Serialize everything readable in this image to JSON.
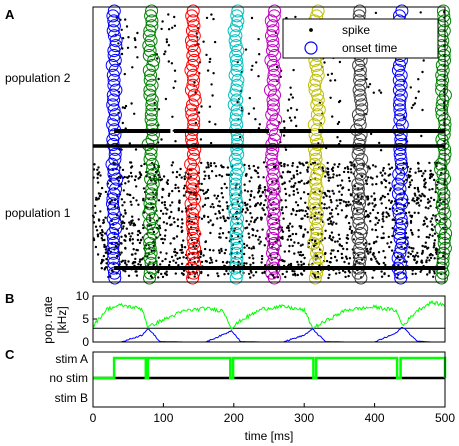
{
  "panels": {
    "a": {
      "letter": "A",
      "population_labels": [
        "population 2",
        "population 1"
      ]
    },
    "b": {
      "letter": "B",
      "ylabel_line1": "pop. rate",
      "ylabel_line2": "[kHz]"
    },
    "c": {
      "letter": "C",
      "state_labels": [
        "stim A",
        "no stim",
        "stim B"
      ]
    }
  },
  "xaxis": {
    "label": "time [ms]",
    "ticks": [
      "0",
      "100",
      "200",
      "300",
      "400",
      "500"
    ]
  },
  "colors": {
    "spike": "#000000",
    "rate_pop1": "#00ff00",
    "rate_pop2": "#0000ff",
    "stim": "#00ff00",
    "onset_series": [
      "#0000ff",
      "#008000",
      "#ff0000",
      "#00bfbf",
      "#bf00bf",
      "#bfbf00",
      "#3f3f3f",
      "#0000ff",
      "#008000"
    ]
  },
  "chart_data": [
    {
      "type": "scatter",
      "panel": "A",
      "title": "",
      "xlabel": "time [ms]",
      "ylabel": "",
      "xlim": [
        0,
        500
      ],
      "legend": {
        "placement": "top-right",
        "entries": [
          "spike",
          "onset time"
        ]
      },
      "series": [
        {
          "name": "spike",
          "marker": "dot"
        },
        {
          "name": "onset time",
          "marker": "circle",
          "bands_ms": [
            [
              28,
              32
            ],
            [
              80,
              86
            ],
            [
              140,
              144
            ],
            [
              202,
              205
            ],
            [
              254,
              258
            ],
            [
              315,
              320
            ],
            [
              376,
              381
            ],
            [
              434,
              439
            ],
            [
              495,
              500
            ]
          ]
        }
      ],
      "population_boundary_fraction": 0.55,
      "horizontal_bars": [
        {
          "population": "population 2",
          "segments_ms": [
            [
              30,
              110
            ],
            [
              115,
              250
            ],
            [
              265,
              310
            ],
            [
              320,
              500
            ]
          ]
        },
        {
          "population": "population 1",
          "segments_ms": [
            [
              30,
              500
            ]
          ]
        }
      ]
    },
    {
      "type": "line",
      "panel": "B",
      "title": "",
      "ylabel": "pop. rate [kHz]",
      "ylim": [
        0,
        10
      ],
      "yticks": [
        "0",
        "5",
        "10"
      ],
      "threshold": 3,
      "x": [
        0,
        20,
        40,
        70,
        78,
        95,
        130,
        160,
        185,
        197,
        210,
        240,
        270,
        300,
        312,
        330,
        360,
        400,
        430,
        440,
        460,
        480,
        500
      ],
      "series": [
        {
          "name": "population 1",
          "values": [
            3.5,
            7.2,
            8.0,
            7.2,
            3.2,
            4.5,
            6.8,
            7.3,
            6.8,
            3.0,
            4.7,
            7.2,
            7.7,
            6.9,
            3.0,
            4.5,
            7.0,
            7.6,
            6.9,
            3.5,
            6.8,
            8.6,
            8.0
          ]
        },
        {
          "name": "population 2",
          "values": [
            0,
            0,
            0,
            1.5,
            3.0,
            0.1,
            0,
            0,
            1.6,
            2.5,
            0.1,
            0,
            0,
            1.5,
            2.8,
            0.1,
            0,
            0,
            1.9,
            3.3,
            0.2,
            0,
            0
          ]
        }
      ]
    },
    {
      "type": "line",
      "panel": "C",
      "title": "",
      "ylabel": "",
      "yticks": [
        "stim A",
        "no stim",
        "stim B"
      ],
      "step": true,
      "series": [
        {
          "name": "stim",
          "segments_ms": [
            [
              30,
              75
            ],
            [
              78,
              195
            ],
            [
              199,
              313
            ],
            [
              317,
              432
            ],
            [
              437,
              500
            ]
          ]
        },
        {
          "name": "no stim baseline",
          "segments_ms": [
            [
              0,
              500
            ]
          ]
        }
      ]
    }
  ]
}
